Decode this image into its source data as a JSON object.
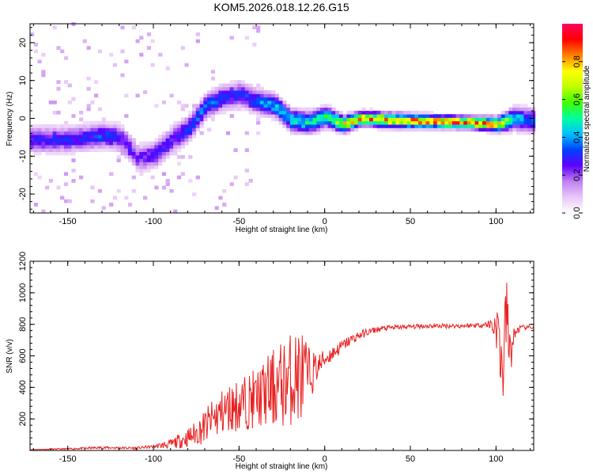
{
  "title": "KOM5.2026.018.12.26.G15",
  "chart_data": [
    {
      "type": "heatmap",
      "name": "spectrogram",
      "xlabel": "Height of straight line (km)",
      "ylabel": "Frequency (Hz)",
      "xlim": [
        -172,
        122
      ],
      "ylim": [
        -25,
        25
      ],
      "xticks": [
        -150,
        -100,
        -50,
        0,
        50,
        100
      ],
      "yticks": [
        -20,
        -10,
        0,
        10,
        20
      ],
      "colorbar": {
        "label": "Normalized spectral amplitude",
        "range": [
          0,
          1
        ],
        "ticks": [
          0.0,
          0.2,
          0.4,
          0.6,
          0.8
        ],
        "colors": [
          "#ffffff",
          "#e8c8f8",
          "#c080f0",
          "#6000ff",
          "#0040ff",
          "#00c0ff",
          "#00ffa0",
          "#40ff00",
          "#c0ff00",
          "#ffff00",
          "#ff8000",
          "#ff0000",
          "#ff0060"
        ]
      },
      "ridge": {
        "description": "dominant frequency track",
        "x": [
          -165,
          -150,
          -140,
          -130,
          -120,
          -110,
          -100,
          -90,
          -80,
          -70,
          -60,
          -50,
          -40,
          -30,
          -20,
          -10,
          0,
          10,
          20,
          40,
          60,
          80,
          100,
          110,
          120
        ],
        "y": [
          -6,
          -6,
          -5.5,
          -5,
          -5.5,
          -11,
          -10,
          -6,
          -3,
          3,
          5,
          6,
          4,
          3,
          -1,
          -1.5,
          0,
          -2,
          -0.5,
          -1,
          -1.2,
          -1.5,
          -2,
          -0.5,
          -1
        ],
        "amplitude": [
          0.3,
          0.3,
          0.3,
          0.35,
          0.3,
          0.25,
          0.3,
          0.3,
          0.35,
          0.4,
          0.35,
          0.3,
          0.4,
          0.45,
          0.5,
          0.5,
          0.55,
          0.75,
          0.85,
          0.85,
          0.9,
          0.95,
          0.85,
          0.5,
          0.35
        ]
      }
    },
    {
      "type": "line",
      "name": "snr",
      "xlabel": "Height of straight line (km)",
      "ylabel": "SNR (v/v)",
      "xlim": [
        -172,
        122
      ],
      "ylim": [
        0,
        1200
      ],
      "xticks": [
        -150,
        -100,
        -50,
        0,
        50,
        100
      ],
      "yticks": [
        200,
        400,
        600,
        800,
        1000,
        1200
      ],
      "color": "#e82020",
      "series": [
        {
          "name": "SNR",
          "x": [
            -172,
            -150,
            -130,
            -110,
            -100,
            -90,
            -80,
            -75,
            -70,
            -65,
            -60,
            -55,
            -50,
            -45,
            -40,
            -35,
            -30,
            -25,
            -20,
            -15,
            -12,
            -10,
            -5,
            0,
            5,
            10,
            15,
            20,
            25,
            30,
            35,
            40,
            50,
            60,
            70,
            80,
            90,
            95,
            100,
            102,
            104,
            106,
            108,
            110,
            112,
            115,
            122
          ],
          "y": [
            5,
            10,
            18,
            15,
            25,
            40,
            80,
            110,
            150,
            200,
            240,
            270,
            290,
            310,
            330,
            360,
            390,
            420,
            450,
            480,
            460,
            470,
            520,
            580,
            620,
            660,
            700,
            730,
            750,
            765,
            775,
            780,
            785,
            790,
            790,
            790,
            795,
            800,
            790,
            700,
            450,
            900,
            600,
            700,
            760,
            780,
            780
          ],
          "noise_amplitude": [
            2,
            5,
            8,
            8,
            10,
            30,
            60,
            80,
            110,
            130,
            150,
            160,
            170,
            180,
            190,
            220,
            260,
            280,
            300,
            320,
            300,
            200,
            100,
            60,
            50,
            40,
            35,
            30,
            25,
            20,
            18,
            16,
            15,
            15,
            15,
            15,
            15,
            20,
            120,
            250,
            200,
            250,
            200,
            80,
            30,
            15,
            10
          ]
        }
      ]
    }
  ]
}
